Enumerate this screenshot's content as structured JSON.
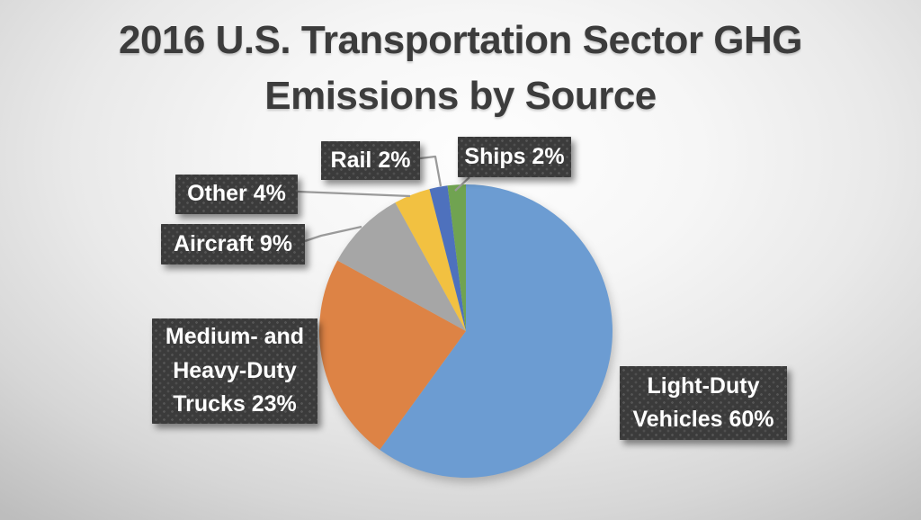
{
  "title": "2016 U.S. Transportation Sector GHG Emissions by Source",
  "chart_data": {
    "type": "pie",
    "title": "2016 U.S. Transportation Sector GHG Emissions by Source",
    "categories": [
      "Light-Duty Vehicles",
      "Medium- and Heavy-Duty Trucks",
      "Aircraft",
      "Other",
      "Rail",
      "Ships"
    ],
    "values": [
      60,
      23,
      9,
      4,
      2,
      2
    ],
    "unit": "%",
    "colors": [
      "#6c9cd2",
      "#dd8345",
      "#a6a6a6",
      "#f2c141",
      "#4e71bd",
      "#70a351"
    ],
    "start_position": "12 o'clock",
    "direction": "clockwise",
    "legend_position": "none - callout labels with leader lines",
    "callouts": {
      "light_duty": "Light-Duty Vehicles 60%",
      "trucks": "Medium- and Heavy-Duty Trucks 23%",
      "aircraft": "Aircraft 9%",
      "other": "Other 4%",
      "rail": "Rail 2%",
      "ships": "Ships 2%"
    }
  },
  "style": {
    "title_color": "#3c3c3c",
    "callout_background": "#3b3b3b",
    "callout_text_color": "#ffffff",
    "leader_line_color": "#9a9a9a"
  }
}
